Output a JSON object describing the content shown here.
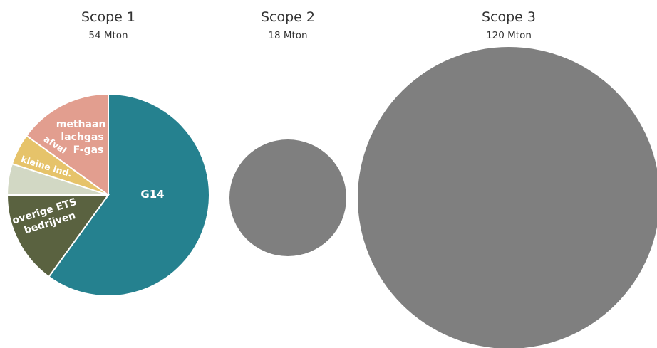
{
  "chart_data": [
    {
      "type": "pie",
      "title": "Scope 1",
      "subtitle": "54 Mton",
      "slices": [
        {
          "label": "G14",
          "value": 60,
          "color": "#25818f"
        },
        {
          "label": "overige ETS bedrijven",
          "value": 15,
          "color": "#5a6240"
        },
        {
          "label": "kleine ind.",
          "value": 5,
          "color": "#d2d8c4"
        },
        {
          "label": "afval",
          "value": 5,
          "color": "#e6c36a"
        },
        {
          "label": "methaan lachgas F-gas",
          "value": 15,
          "color": "#e29e8f"
        }
      ]
    },
    {
      "type": "bubble",
      "title": "Scope 2",
      "subtitle": "18 Mton",
      "value": 18,
      "color": "#7f7f7f"
    },
    {
      "type": "bubble",
      "title": "Scope 3",
      "subtitle": "120 Mton",
      "value": 120,
      "color": "#7f7f7f"
    }
  ]
}
